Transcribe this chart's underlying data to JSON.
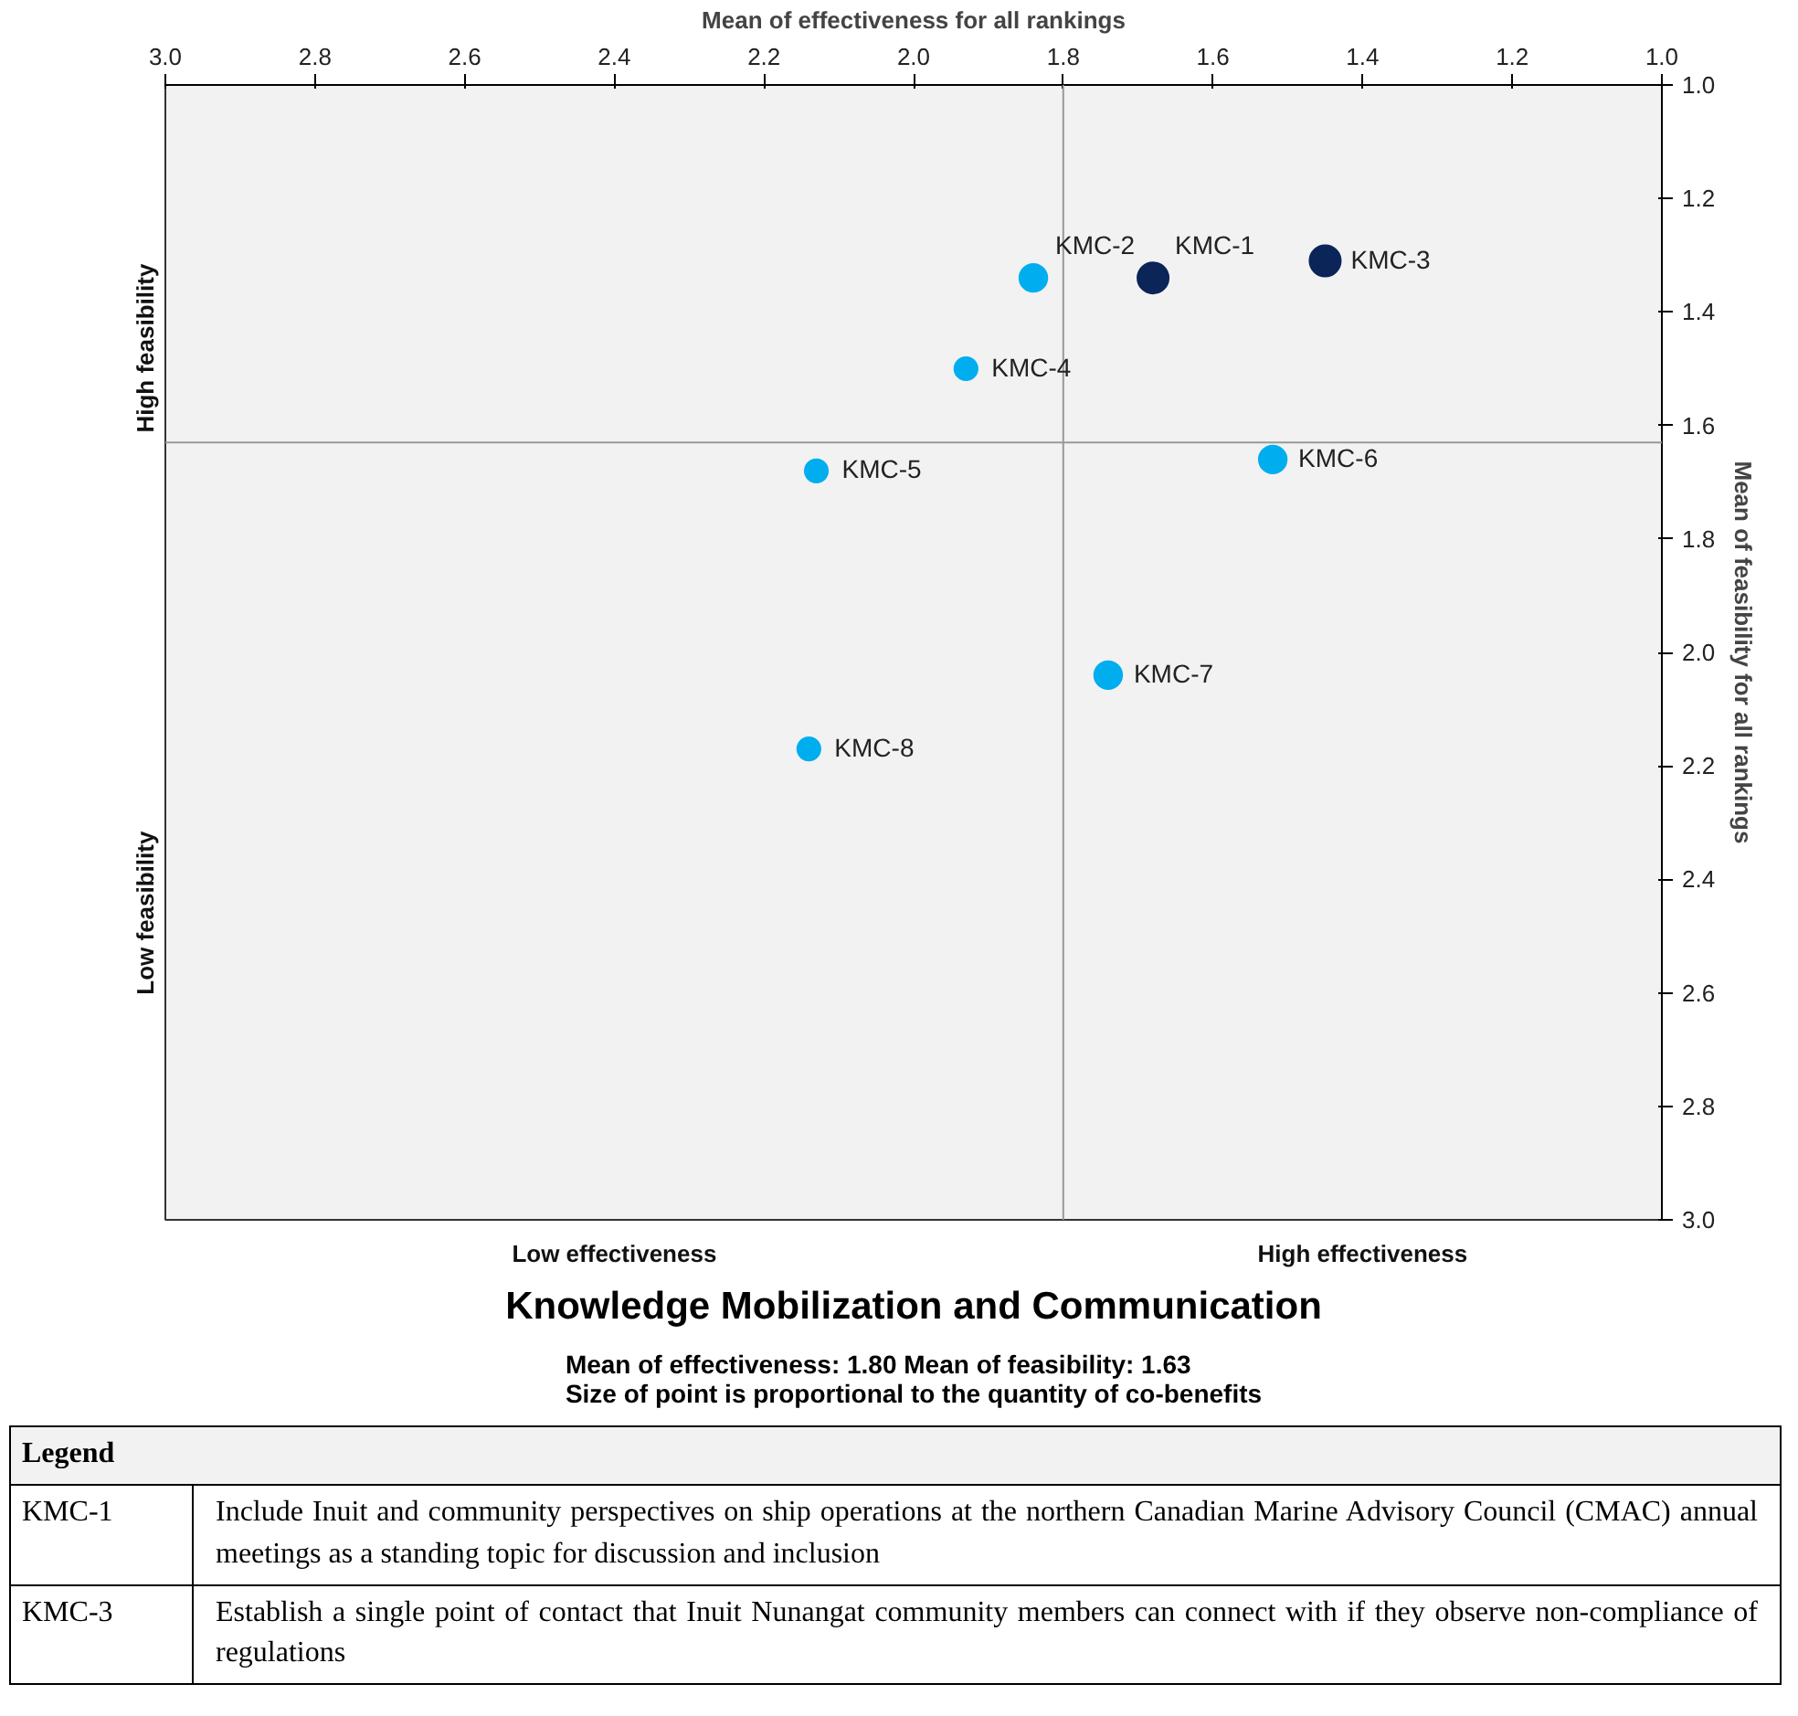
{
  "chart_data": {
    "type": "bubble",
    "title": "Knowledge Mobilization and Communication",
    "subtitle": "Mean of effectiveness: 1.80    Mean of feasibility: 1.63\nSize of point is proportional to the quantity of co-benefits",
    "xlabel": "Mean of effectiveness for all rankings",
    "y2label": "Mean of feasibility for all rankings",
    "x": [
      1.68,
      1.84,
      1.45,
      1.93,
      2.13,
      1.52,
      1.74,
      2.14
    ],
    "values": [
      1.34,
      1.34,
      1.31,
      1.5,
      1.68,
      1.66,
      2.04,
      2.17
    ],
    "sizes": [
      1,
      0.8,
      1,
      0.55,
      0.55,
      0.8,
      0.8,
      0.55
    ],
    "colors": [
      "#0b2559",
      "#00aeef",
      "#0b2559",
      "#00aeef",
      "#00aeef",
      "#00aeef",
      "#00aeef",
      "#00aeef"
    ],
    "xlim": [
      3.0,
      1.0
    ],
    "ylim": [
      3.0,
      1.0
    ],
    "xticks": [
      {
        "value": 3,
        "label": "3.0"
      },
      {
        "value": 2.8,
        "label": "2.8"
      },
      {
        "value": 2.6,
        "label": "2.6"
      },
      {
        "value": 2.4,
        "label": "2.4"
      },
      {
        "value": 2.2,
        "label": "2.2"
      },
      {
        "value": 2,
        "label": "2.0"
      },
      {
        "value": 1.8,
        "label": "1.8"
      },
      {
        "value": 1.6,
        "label": "1.6"
      },
      {
        "value": 1.4,
        "label": "1.4"
      },
      {
        "value": 1.2,
        "label": "1.2"
      },
      {
        "value": 1,
        "label": "1.0"
      }
    ],
    "yticks": [
      {
        "value": 1,
        "label": "1.0"
      },
      {
        "value": 1.2,
        "label": "1.2"
      },
      {
        "value": 1.4,
        "label": "1.4"
      },
      {
        "value": 1.6,
        "label": "1.6"
      },
      {
        "value": 1.8,
        "label": "1.8"
      },
      {
        "value": 2,
        "label": "2.0"
      },
      {
        "value": 2.2,
        "label": "2.2"
      },
      {
        "value": 2.4,
        "label": "2.4"
      },
      {
        "value": 2.6,
        "label": "2.6"
      },
      {
        "value": 2.8,
        "label": "2.8"
      },
      {
        "value": 3,
        "label": "3.0"
      }
    ],
    "ref_lines": [
      {
        "axis": "x",
        "value": 1.8,
        "color": "#999999"
      },
      {
        "axis": "y",
        "value": 1.63,
        "color": "#999999"
      }
    ],
    "grid": false,
    "annotations": [
      {
        "text": "KMC-1",
        "x": 1.68,
        "y": 1.34
      },
      {
        "text": "KMC-2",
        "x": 1.84,
        "y": 1.34
      },
      {
        "text": "KMC-3",
        "x": 1.45,
        "y": 1.31
      },
      {
        "text": "KMC-4",
        "x": 1.93,
        "y": 1.5
      },
      {
        "text": "KMC-5",
        "x": 2.13,
        "y": 1.68
      },
      {
        "text": "KMC-6",
        "x": 1.52,
        "y": 1.66
      },
      {
        "text": "KMC-7",
        "x": 1.74,
        "y": 2.04
      },
      {
        "text": "KMC-8",
        "x": 2.14,
        "y": 2.17
      },
      "High feasibility",
      "Low feasibility",
      "Low effectiveness",
      "High effectiveness",
      "Legend",
      "KMC-1",
      "Include Inuit and community perspectives on ship operations at the northern Canadian Marine Advisory Council (CMAC) annual meetings as a standing topic for discussion and inclusion",
      "KMC-3",
      "Establish a single point of contact that Inuit Nunangat community members can connect with if they observe non-compliance of regulations"
    ]
  }
}
